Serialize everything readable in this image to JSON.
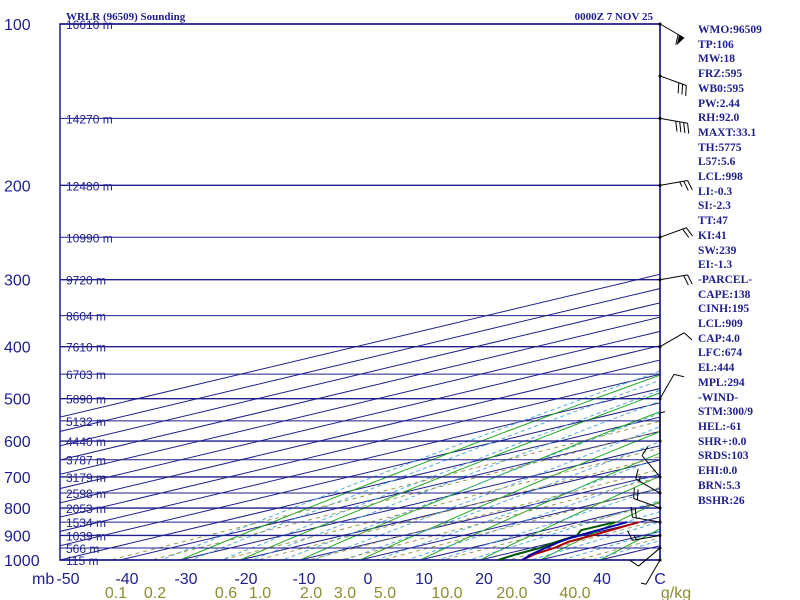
{
  "title_left": "WRLR (96509) Sounding",
  "title_right": "0000Z  7 NOV 25",
  "pressure_unit": "mb",
  "mixing_unit": "g/kg",
  "indices": [
    "WMO:96509",
    "TP:106",
    "MW:18",
    "FRZ:595",
    "WB0:595",
    "PW:2.44",
    "RH:92.0",
    "MAXT:33.1",
    "TH:5775",
    "L57:5.6",
    "LCL:998",
    "LI:-0.3",
    "SI:-2.3",
    "TT:47",
    "KI:41",
    "SW:239",
    "EI:-1.3",
    "-PARCEL-",
    "CAPE:138",
    "CINH:195",
    "LCL:909",
    "CAP:4.0",
    "LFC:674",
    "EL:444",
    "MPL:294",
    "-WIND-",
    "STM:300/9",
    "HEL:-61",
    "SHR+:0.0",
    "SRDS:103",
    "EHI:0.0",
    "BRN:5.3",
    "BSHR:26"
  ],
  "colors": {
    "frame": "#1e1e8c",
    "isobar": "#1e1e8c",
    "isotherm": "#1e1e8c",
    "dry_adiabat": "#1eaa1e",
    "moist_adiabat": "#55aadd",
    "mixing_ratio": "#999955",
    "temperature": "#aa0000",
    "dewpoint": "#005500",
    "parcel": "#0000aa",
    "wind": "#000000"
  },
  "chart_data": {
    "type": "skew-t",
    "title": "WRLR (96509) Sounding 0000Z 7 NOV 25",
    "xlabel": "Temperature (C)",
    "ylabel": "Pressure (mb)",
    "pressure_range": [
      1000,
      100
    ],
    "temperature_range": [
      -50,
      50
    ],
    "pressure_tick_labels": [
      "100",
      "200",
      "300",
      "400",
      "500",
      "600",
      "700",
      "800",
      "900",
      "1000"
    ],
    "pressure_ticks": [
      100,
      200,
      300,
      400,
      500,
      600,
      700,
      800,
      900,
      1000
    ],
    "temperature_tick_labels": [
      "-50",
      "-40",
      "-30",
      "-20",
      "-10",
      "0",
      "10",
      "20",
      "30",
      "40",
      "C"
    ],
    "temperature_ticks": [
      -50,
      -40,
      -30,
      -20,
      -10,
      0,
      10,
      20,
      30,
      40
    ],
    "mixing_ratio_labels": [
      "0.1",
      "0.2",
      "0.6",
      "1.0",
      "2.0",
      "3.0",
      "5.0",
      "10.0",
      "20.0",
      "40.0"
    ],
    "mixing_ratio_values": [
      0.1,
      0.2,
      0.6,
      1.0,
      2.0,
      3.0,
      5.0,
      10.0,
      20.0,
      40.0
    ],
    "heights": [
      {
        "p": 100,
        "label": "16610 m"
      },
      {
        "p": 150,
        "label": "14270 m"
      },
      {
        "p": 200,
        "label": "12480 m"
      },
      {
        "p": 250,
        "label": "10990 m"
      },
      {
        "p": 300,
        "label": "9720 m"
      },
      {
        "p": 350,
        "label": "8604 m"
      },
      {
        "p": 400,
        "label": "7610 m"
      },
      {
        "p": 450,
        "label": "6703 m"
      },
      {
        "p": 500,
        "label": "5890 m"
      },
      {
        "p": 550,
        "label": "5132 m"
      },
      {
        "p": 600,
        "label": "4440 m"
      },
      {
        "p": 650,
        "label": "3787 m"
      },
      {
        "p": 700,
        "label": "3179 m"
      },
      {
        "p": 750,
        "label": "2598 m"
      },
      {
        "p": 800,
        "label": "2053 m"
      },
      {
        "p": 850,
        "label": "1534 m"
      },
      {
        "p": 900,
        "label": "1039 m"
      },
      {
        "p": 950,
        "label": "566 m"
      },
      {
        "p": 1000,
        "label": "115 m"
      }
    ],
    "series": [
      {
        "name": "Temperature",
        "points": [
          [
            1000,
            27
          ],
          [
            975,
            25
          ],
          [
            950,
            24
          ],
          [
            925,
            22
          ],
          [
            900,
            21.5
          ],
          [
            850,
            20
          ],
          [
            800,
            18
          ],
          [
            750,
            16
          ],
          [
            700,
            12.5
          ],
          [
            650,
            9
          ],
          [
            600,
            5.5
          ],
          [
            550,
            1.5
          ],
          [
            500,
            -4
          ],
          [
            450,
            -9.5
          ],
          [
            400,
            -15.5
          ],
          [
            350,
            -22
          ],
          [
            300,
            -30
          ],
          [
            250,
            -39
          ],
          [
            200,
            -50
          ],
          [
            175,
            -57
          ],
          [
            150,
            -65
          ],
          [
            125,
            -71
          ],
          [
            110,
            -74
          ],
          [
            104,
            -76
          ],
          [
            100,
            -78
          ]
        ]
      },
      {
        "name": "Dewpoint",
        "points": [
          [
            1000,
            23
          ],
          [
            975,
            22
          ],
          [
            950,
            21.5
          ],
          [
            925,
            20
          ],
          [
            900,
            19
          ],
          [
            880,
            16
          ],
          [
            850,
            16
          ],
          [
            800,
            14.5
          ],
          [
            750,
            13
          ],
          [
            700,
            10.5
          ],
          [
            650,
            6
          ],
          [
            600,
            3
          ],
          [
            550,
            0
          ],
          [
            500,
            -5
          ],
          [
            450,
            -10.5
          ],
          [
            400,
            -17
          ],
          [
            350,
            -24
          ],
          [
            300,
            -32
          ],
          [
            250,
            -42
          ],
          [
            200,
            -54
          ],
          [
            175,
            -60
          ],
          [
            150,
            -70
          ],
          [
            125,
            -76
          ],
          [
            110,
            -79
          ],
          [
            104,
            -80
          ],
          [
            100,
            -80
          ]
        ]
      },
      {
        "name": "Parcel",
        "points": [
          [
            1000,
            27
          ],
          [
            975,
            24.5
          ],
          [
            950,
            22.5
          ],
          [
            925,
            20.5
          ],
          [
            909,
            19.5
          ],
          [
            850,
            18
          ],
          [
            800,
            16.5
          ],
          [
            750,
            14.5
          ],
          [
            700,
            12
          ],
          [
            650,
            9
          ],
          [
            600,
            6
          ],
          [
            550,
            2
          ],
          [
            500,
            -2.5
          ],
          [
            450,
            -8
          ],
          [
            400,
            -14.5
          ],
          [
            350,
            -22
          ],
          [
            300,
            -31
          ],
          [
            250,
            -42
          ],
          [
            200,
            -55
          ],
          [
            150,
            -72
          ],
          [
            115,
            -85
          ]
        ]
      }
    ],
    "wind_barbs": [
      {
        "p": 1000,
        "dir": 210,
        "spd": 5
      },
      {
        "p": 950,
        "dir": 230,
        "spd": 10
      },
      {
        "p": 900,
        "dir": 260,
        "spd": 15
      },
      {
        "p": 850,
        "dir": 280,
        "spd": 20
      },
      {
        "p": 800,
        "dir": 290,
        "spd": 20
      },
      {
        "p": 750,
        "dir": 300,
        "spd": 15
      },
      {
        "p": 700,
        "dir": 320,
        "spd": 10
      },
      {
        "p": 600,
        "dir": 360,
        "spd": 5
      },
      {
        "p": 500,
        "dir": 30,
        "spd": 10
      },
      {
        "p": 400,
        "dir": 60,
        "spd": 10
      },
      {
        "p": 300,
        "dir": 80,
        "spd": 20
      },
      {
        "p": 250,
        "dir": 70,
        "spd": 20
      },
      {
        "p": 200,
        "dir": 80,
        "spd": 25
      },
      {
        "p": 150,
        "dir": 100,
        "spd": 40
      },
      {
        "p": 125,
        "dir": 110,
        "spd": 30
      },
      {
        "p": 100,
        "dir": 120,
        "spd": 60
      }
    ]
  }
}
